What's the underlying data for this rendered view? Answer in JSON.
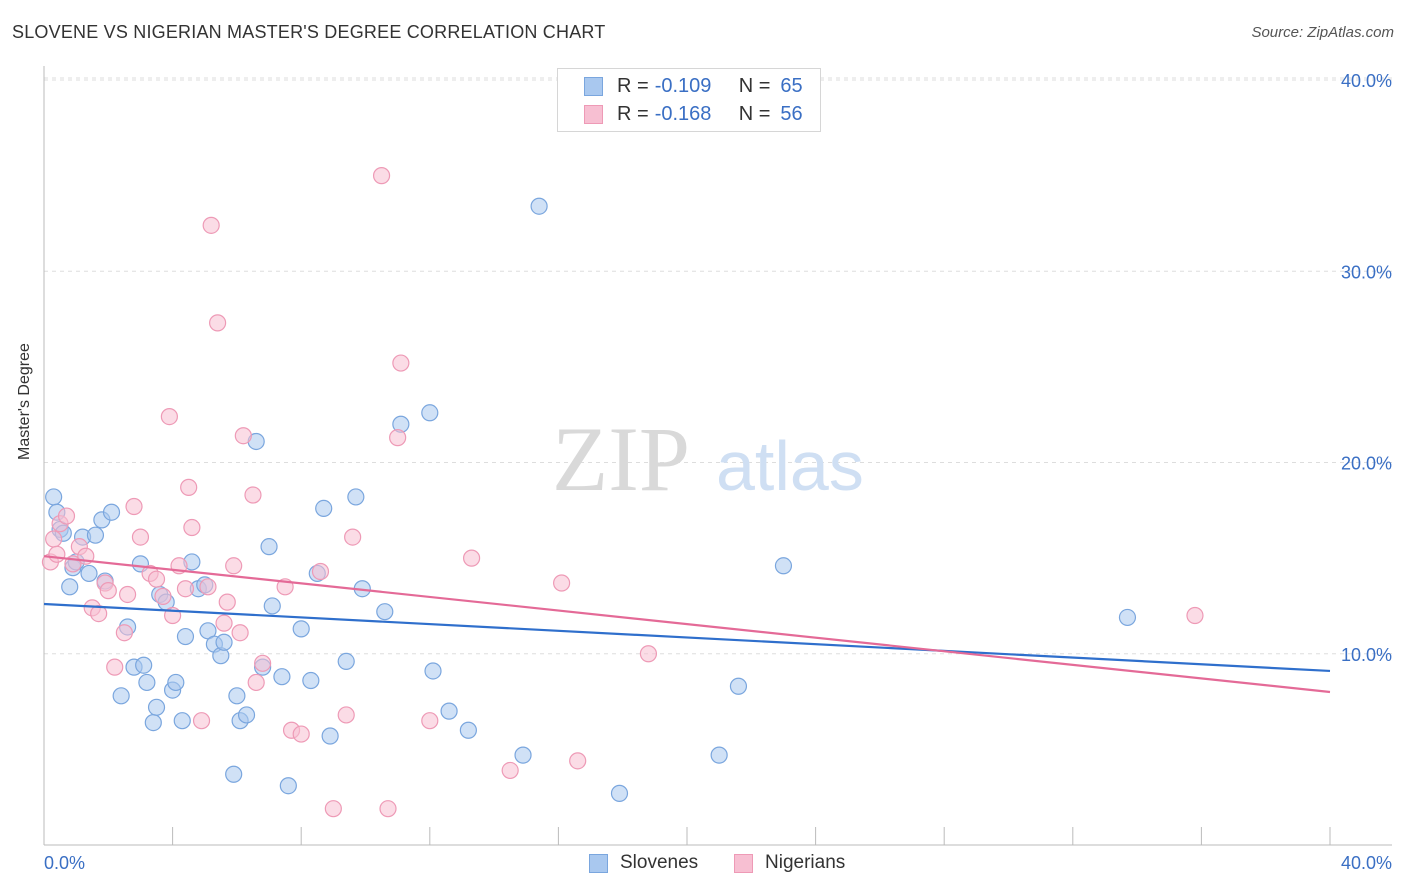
{
  "header": {
    "title": "SLOVENE VS NIGERIAN MASTER'S DEGREE CORRELATION CHART",
    "source": "Source: ZipAtlas.com"
  },
  "legend": {
    "rows": [
      {
        "r_label": "R =",
        "r_value": "-0.109",
        "n_label": "N =",
        "n_value": "65"
      },
      {
        "r_label": "R =",
        "r_value": "-0.168",
        "n_label": "N =",
        "n_value": "56"
      }
    ]
  },
  "watermark": {
    "zip": "ZIP",
    "atlas": "atlas"
  },
  "colors": {
    "slovenes_fill": "#a9c8ef",
    "slovenes_stroke": "#7aa6de",
    "slovenes_line": "#2f6fcc",
    "nigerians_fill": "#f7bfd2",
    "nigerians_stroke": "#ee9ab6",
    "nigerians_line": "#e46a97",
    "tick_text": "#3a6fc4",
    "grid": "#dddddd"
  },
  "chart_data": {
    "type": "scatter",
    "title": "SLOVENE VS NIGERIAN MASTER'S DEGREE CORRELATION CHART",
    "xlabel": "",
    "ylabel": "Master's Degree",
    "xlim": [
      0,
      40
    ],
    "ylim": [
      0,
      40
    ],
    "x_tick_labels": [
      "0.0%",
      "40.0%"
    ],
    "y_tick_labels": [
      "10.0%",
      "20.0%",
      "30.0%",
      "40.0%"
    ],
    "y_ticks": [
      10,
      20,
      30,
      40
    ],
    "grid": "horizontal dashed",
    "legend_position": "bottom-center",
    "series": [
      {
        "name": "Slovenes",
        "r": -0.109,
        "n": 65,
        "trend": {
          "x": [
            0,
            40
          ],
          "y": [
            12.6,
            9.1
          ]
        },
        "points": [
          [
            0.3,
            18.2
          ],
          [
            0.4,
            17.4
          ],
          [
            0.5,
            16.5
          ],
          [
            0.6,
            16.3
          ],
          [
            0.8,
            13.5
          ],
          [
            0.9,
            14.5
          ],
          [
            1.0,
            14.8
          ],
          [
            1.2,
            16.1
          ],
          [
            1.4,
            14.2
          ],
          [
            1.6,
            16.2
          ],
          [
            1.8,
            17.0
          ],
          [
            1.9,
            13.8
          ],
          [
            2.1,
            17.4
          ],
          [
            2.4,
            7.8
          ],
          [
            2.6,
            11.4
          ],
          [
            2.8,
            9.3
          ],
          [
            3.0,
            14.7
          ],
          [
            3.1,
            9.4
          ],
          [
            3.2,
            8.5
          ],
          [
            3.4,
            6.4
          ],
          [
            3.5,
            7.2
          ],
          [
            3.6,
            13.1
          ],
          [
            3.8,
            12.7
          ],
          [
            4.0,
            8.1
          ],
          [
            4.1,
            8.5
          ],
          [
            4.3,
            6.5
          ],
          [
            4.4,
            10.9
          ],
          [
            4.6,
            14.8
          ],
          [
            4.8,
            13.4
          ],
          [
            5.0,
            13.6
          ],
          [
            5.1,
            11.2
          ],
          [
            5.3,
            10.5
          ],
          [
            5.5,
            9.9
          ],
          [
            5.6,
            10.6
          ],
          [
            5.9,
            3.7
          ],
          [
            6.0,
            7.8
          ],
          [
            6.1,
            6.5
          ],
          [
            6.3,
            6.8
          ],
          [
            6.6,
            21.1
          ],
          [
            6.8,
            9.3
          ],
          [
            7.0,
            15.6
          ],
          [
            7.1,
            12.5
          ],
          [
            7.4,
            8.8
          ],
          [
            7.6,
            3.1
          ],
          [
            8.0,
            11.3
          ],
          [
            8.3,
            8.6
          ],
          [
            8.5,
            14.2
          ],
          [
            8.7,
            17.6
          ],
          [
            8.9,
            5.7
          ],
          [
            9.4,
            9.6
          ],
          [
            9.7,
            18.2
          ],
          [
            9.9,
            13.4
          ],
          [
            10.6,
            12.2
          ],
          [
            11.1,
            22.0
          ],
          [
            12.0,
            22.6
          ],
          [
            12.1,
            9.1
          ],
          [
            12.6,
            7.0
          ],
          [
            13.2,
            6.0
          ],
          [
            14.9,
            4.7
          ],
          [
            15.4,
            33.4
          ],
          [
            17.9,
            2.7
          ],
          [
            21.0,
            4.7
          ],
          [
            21.6,
            8.3
          ],
          [
            23.0,
            14.6
          ],
          [
            33.7,
            11.9
          ]
        ]
      },
      {
        "name": "Nigerians",
        "r": -0.168,
        "n": 56,
        "trend": {
          "x": [
            0,
            40
          ],
          "y": [
            15.1,
            8.0
          ]
        },
        "points": [
          [
            0.2,
            14.8
          ],
          [
            0.3,
            16.0
          ],
          [
            0.4,
            15.2
          ],
          [
            0.5,
            16.8
          ],
          [
            0.7,
            17.2
          ],
          [
            0.9,
            14.7
          ],
          [
            1.1,
            15.6
          ],
          [
            1.3,
            15.1
          ],
          [
            1.5,
            12.4
          ],
          [
            1.7,
            12.1
          ],
          [
            1.9,
            13.7
          ],
          [
            2.0,
            13.3
          ],
          [
            2.2,
            9.3
          ],
          [
            2.5,
            11.1
          ],
          [
            2.6,
            13.1
          ],
          [
            2.8,
            17.7
          ],
          [
            3.0,
            16.1
          ],
          [
            3.3,
            14.2
          ],
          [
            3.5,
            13.9
          ],
          [
            3.7,
            13.0
          ],
          [
            3.9,
            22.4
          ],
          [
            4.0,
            12.0
          ],
          [
            4.2,
            14.6
          ],
          [
            4.4,
            13.4
          ],
          [
            4.5,
            18.7
          ],
          [
            4.6,
            16.6
          ],
          [
            4.9,
            6.5
          ],
          [
            5.1,
            13.5
          ],
          [
            5.2,
            32.4
          ],
          [
            5.4,
            27.3
          ],
          [
            5.6,
            11.6
          ],
          [
            5.7,
            12.7
          ],
          [
            5.9,
            14.6
          ],
          [
            6.1,
            11.1
          ],
          [
            6.2,
            21.4
          ],
          [
            6.5,
            18.3
          ],
          [
            6.6,
            8.5
          ],
          [
            6.8,
            9.5
          ],
          [
            7.5,
            13.5
          ],
          [
            7.7,
            6.0
          ],
          [
            8.0,
            5.8
          ],
          [
            8.6,
            14.3
          ],
          [
            9.0,
            1.9
          ],
          [
            9.4,
            6.8
          ],
          [
            9.6,
            16.1
          ],
          [
            10.5,
            35.0
          ],
          [
            10.7,
            1.9
          ],
          [
            11.0,
            21.3
          ],
          [
            11.1,
            25.2
          ],
          [
            12.0,
            6.5
          ],
          [
            13.3,
            15.0
          ],
          [
            14.5,
            3.9
          ],
          [
            16.1,
            13.7
          ],
          [
            16.6,
            4.4
          ],
          [
            18.8,
            10.0
          ],
          [
            35.8,
            12.0
          ]
        ]
      }
    ]
  },
  "bottom_legend": {
    "items": [
      "Slovenes",
      "Nigerians"
    ]
  }
}
